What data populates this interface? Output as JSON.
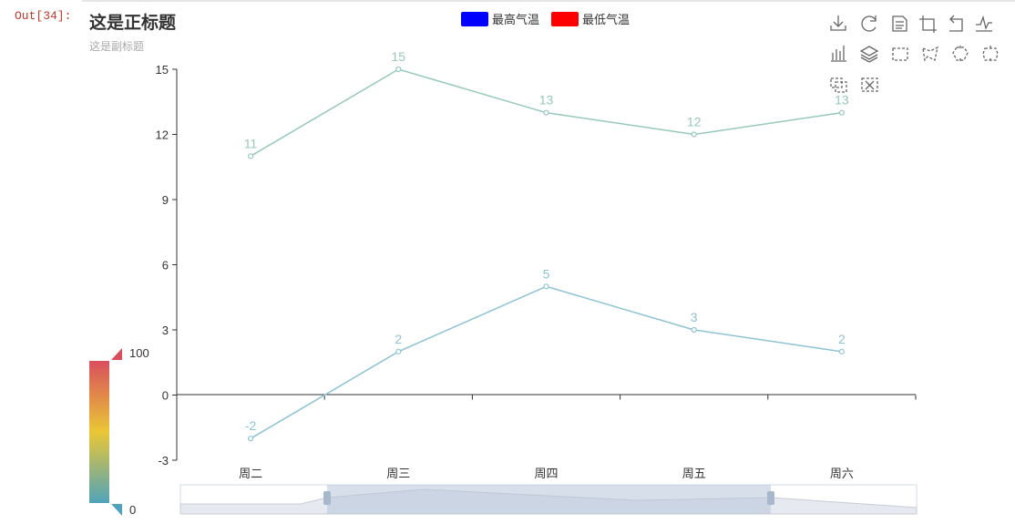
{
  "notebook": {
    "out_prompt": "Out[34]:"
  },
  "chart_data": {
    "type": "line",
    "title": "这是正标题",
    "subtitle": "这是副标题",
    "categories": [
      "周二",
      "周三",
      "周四",
      "周五",
      "周六"
    ],
    "series": [
      {
        "name": "最高气温",
        "values": [
          11,
          15,
          13,
          12,
          13
        ],
        "legend_color": "#0000ff",
        "line_color": "#96c8bb"
      },
      {
        "name": "最低气温",
        "values": [
          -2,
          2,
          5,
          3,
          2
        ],
        "legend_color": "#ff0000",
        "line_color": "#8ec3d3"
      }
    ],
    "yticks": [
      -3,
      0,
      3,
      6,
      9,
      12,
      15
    ],
    "ylim": [
      -3,
      15
    ],
    "legend_position": "top-center",
    "grid": false,
    "visual_map": {
      "max_label": "100",
      "min_label": "0",
      "colors": [
        "#d94e5d",
        "#eac736",
        "#50a3ba"
      ]
    },
    "data_zoom": {
      "start": 0.2,
      "end": 0.8
    },
    "colors": {
      "axis": "#333333",
      "tick_label": "#333333"
    }
  },
  "toolbox": {
    "icons": [
      "download-icon",
      "refresh-icon",
      "data-view-icon",
      "zoom-icon",
      "zoom-back-icon",
      "line-chart-icon",
      "bar-chart-icon",
      "stack-icon",
      "rect-select-icon",
      "polygon-select-icon",
      "keep-select-icon",
      "clear-select-icon",
      "box-zoom-icon",
      "box-zoom-clear-icon"
    ]
  }
}
